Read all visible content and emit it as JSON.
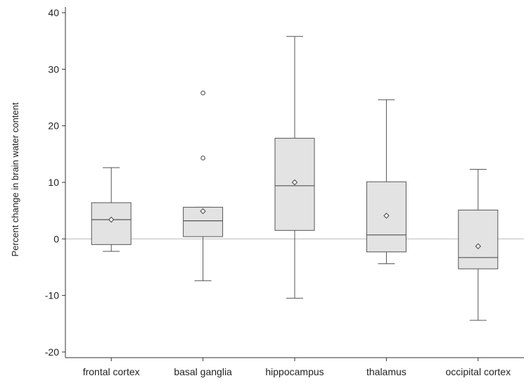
{
  "chart_data": {
    "type": "box",
    "ylabel": "Percent change in brain water content",
    "ylim": [
      -21,
      41
    ],
    "yticks": [
      -20,
      -10,
      0,
      10,
      20,
      30,
      40
    ],
    "reference_line_y": 0,
    "categories": [
      "frontal cortex",
      "basal ganglia",
      "hippocampus",
      "thalamus",
      "occipital cortex"
    ],
    "boxes": [
      {
        "category": "frontal cortex",
        "whisker_low": -2.2,
        "q1": -1.0,
        "median": 3.4,
        "q3": 6.4,
        "whisker_high": 12.6,
        "mean": 3.4,
        "outliers": []
      },
      {
        "category": "basal ganglia",
        "whisker_low": -7.4,
        "q1": 0.4,
        "median": 3.2,
        "q3": 5.6,
        "whisker_high": 5.6,
        "mean": 4.9,
        "outliers": [
          14.3,
          25.8
        ]
      },
      {
        "category": "hippocampus",
        "whisker_low": -10.5,
        "q1": 1.5,
        "median": 9.4,
        "q3": 17.8,
        "whisker_high": 35.8,
        "mean": 10.0,
        "outliers": []
      },
      {
        "category": "thalamus",
        "whisker_low": -4.4,
        "q1": -2.3,
        "median": 0.7,
        "q3": 10.1,
        "whisker_high": 24.6,
        "mean": 4.1,
        "outliers": []
      },
      {
        "category": "occipital cortex",
        "whisker_low": -14.4,
        "q1": -5.3,
        "median": -3.3,
        "q3": 5.1,
        "whisker_high": 12.3,
        "mean": -1.3,
        "outliers": []
      }
    ],
    "colors": {
      "box_fill": "#e3e3e3",
      "box_stroke": "#555555",
      "zero_line": "#cfcfcf"
    }
  }
}
